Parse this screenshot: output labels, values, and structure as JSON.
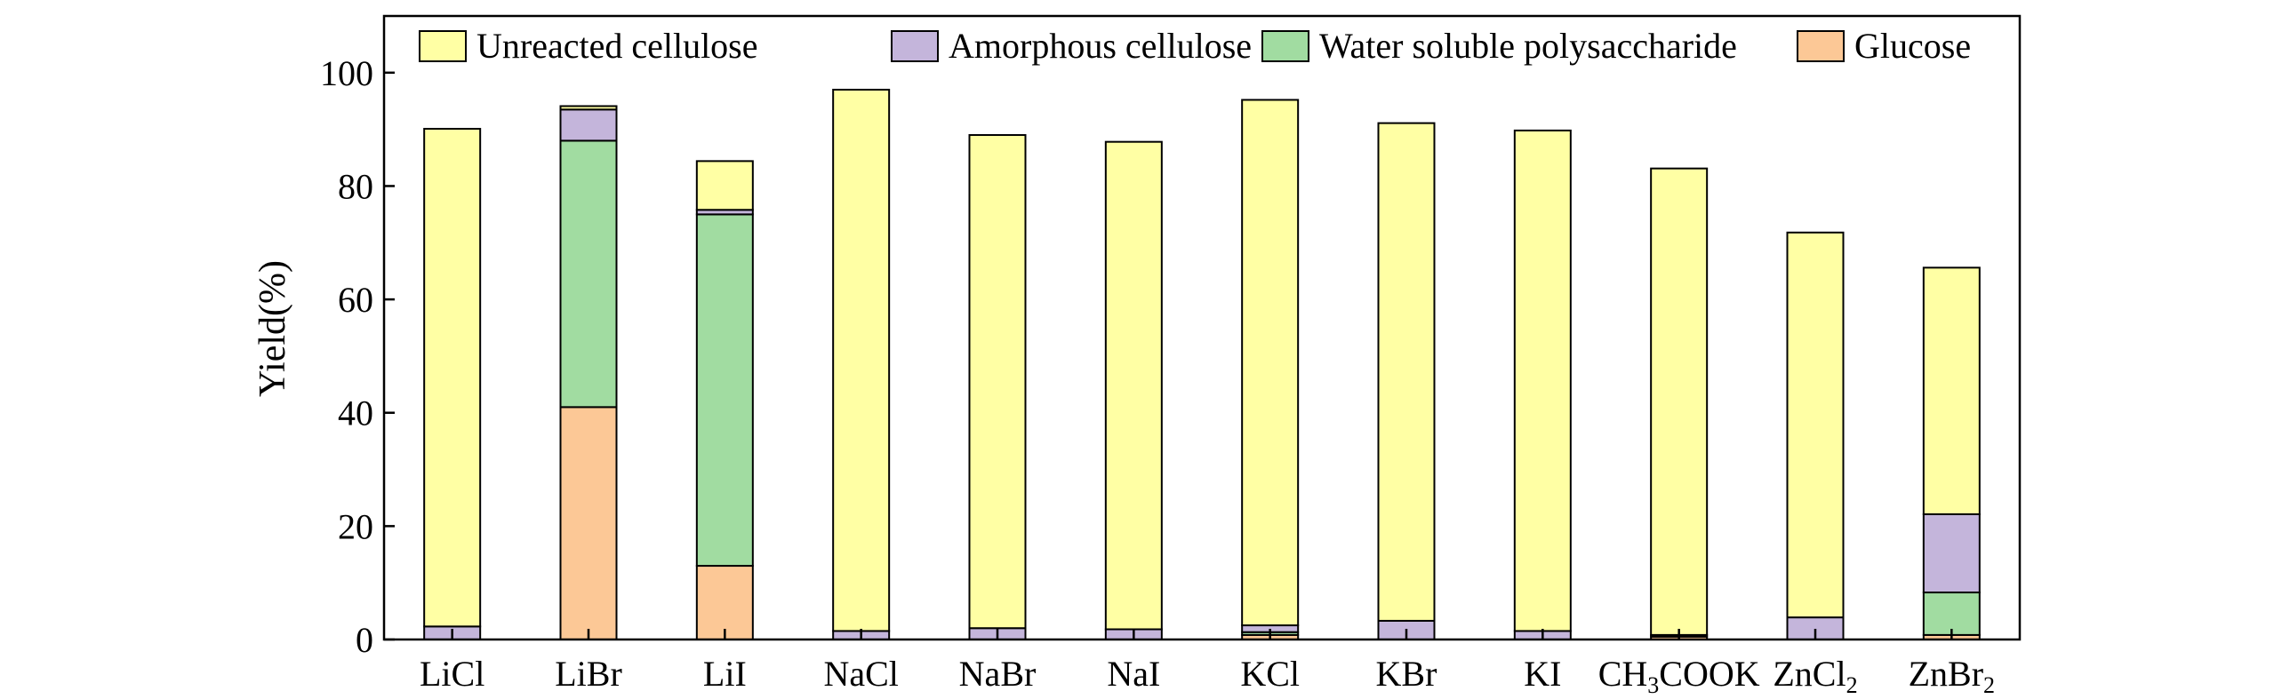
{
  "chart_data": {
    "type": "bar",
    "stacked": true,
    "title": "",
    "xlabel": "",
    "ylabel": "Yield(%)",
    "ylim": [
      0,
      110
    ],
    "yticks": [
      0,
      20,
      40,
      60,
      80,
      100
    ],
    "ytick_labels": [
      "0",
      "20",
      "40",
      "60",
      "80",
      "100"
    ],
    "grid": false,
    "legend_position": "top",
    "categories": [
      "LiCl",
      "LiBr",
      "LiI",
      "NaCl",
      "NaBr",
      "NaI",
      "KCl",
      "KBr",
      "KI",
      "CH3COOK",
      "ZnCl2",
      "ZnBr2"
    ],
    "category_labels": [
      {
        "text": "LiCl"
      },
      {
        "text": "LiBr"
      },
      {
        "text": "LiI"
      },
      {
        "text": "NaCl"
      },
      {
        "text": "NaBr"
      },
      {
        "text": "NaI"
      },
      {
        "text": "KCl"
      },
      {
        "text": "KBr"
      },
      {
        "text": "KI"
      },
      {
        "text": "CH",
        "sub": "3",
        "rest": "COOK"
      },
      {
        "text": "ZnCl",
        "sub": "2",
        "rest": ""
      },
      {
        "text": "ZnBr",
        "sub": "2",
        "rest": ""
      }
    ],
    "series": [
      {
        "name": "Glucose",
        "color": "#FCC896",
        "values": [
          0,
          41,
          13,
          0,
          0,
          0,
          0.8,
          0,
          0,
          0.5,
          0,
          0.8
        ]
      },
      {
        "name": "Water soluble polysaccharide",
        "color": "#A1DCA1",
        "values": [
          0,
          47,
          62,
          0,
          0,
          0,
          0.5,
          0,
          0,
          0,
          0,
          7.5
        ]
      },
      {
        "name": "Amorphous cellulose",
        "color": "#C4B5DB",
        "values": [
          2.3,
          5.5,
          0.8,
          1.5,
          2,
          1.8,
          1.2,
          3.3,
          1.5,
          0.3,
          3.9,
          13.8
        ]
      },
      {
        "name": "Unreacted cellulose",
        "color": "#FFFFA4",
        "values": [
          87.8,
          0.6,
          8.6,
          95.5,
          87,
          86,
          92.7,
          87.8,
          88.3,
          82.3,
          67.9,
          43.5
        ]
      }
    ],
    "legend_order": [
      "Unreacted cellulose",
      "Amorphous cellulose",
      "Water soluble polysaccharide",
      "Glucose"
    ]
  }
}
